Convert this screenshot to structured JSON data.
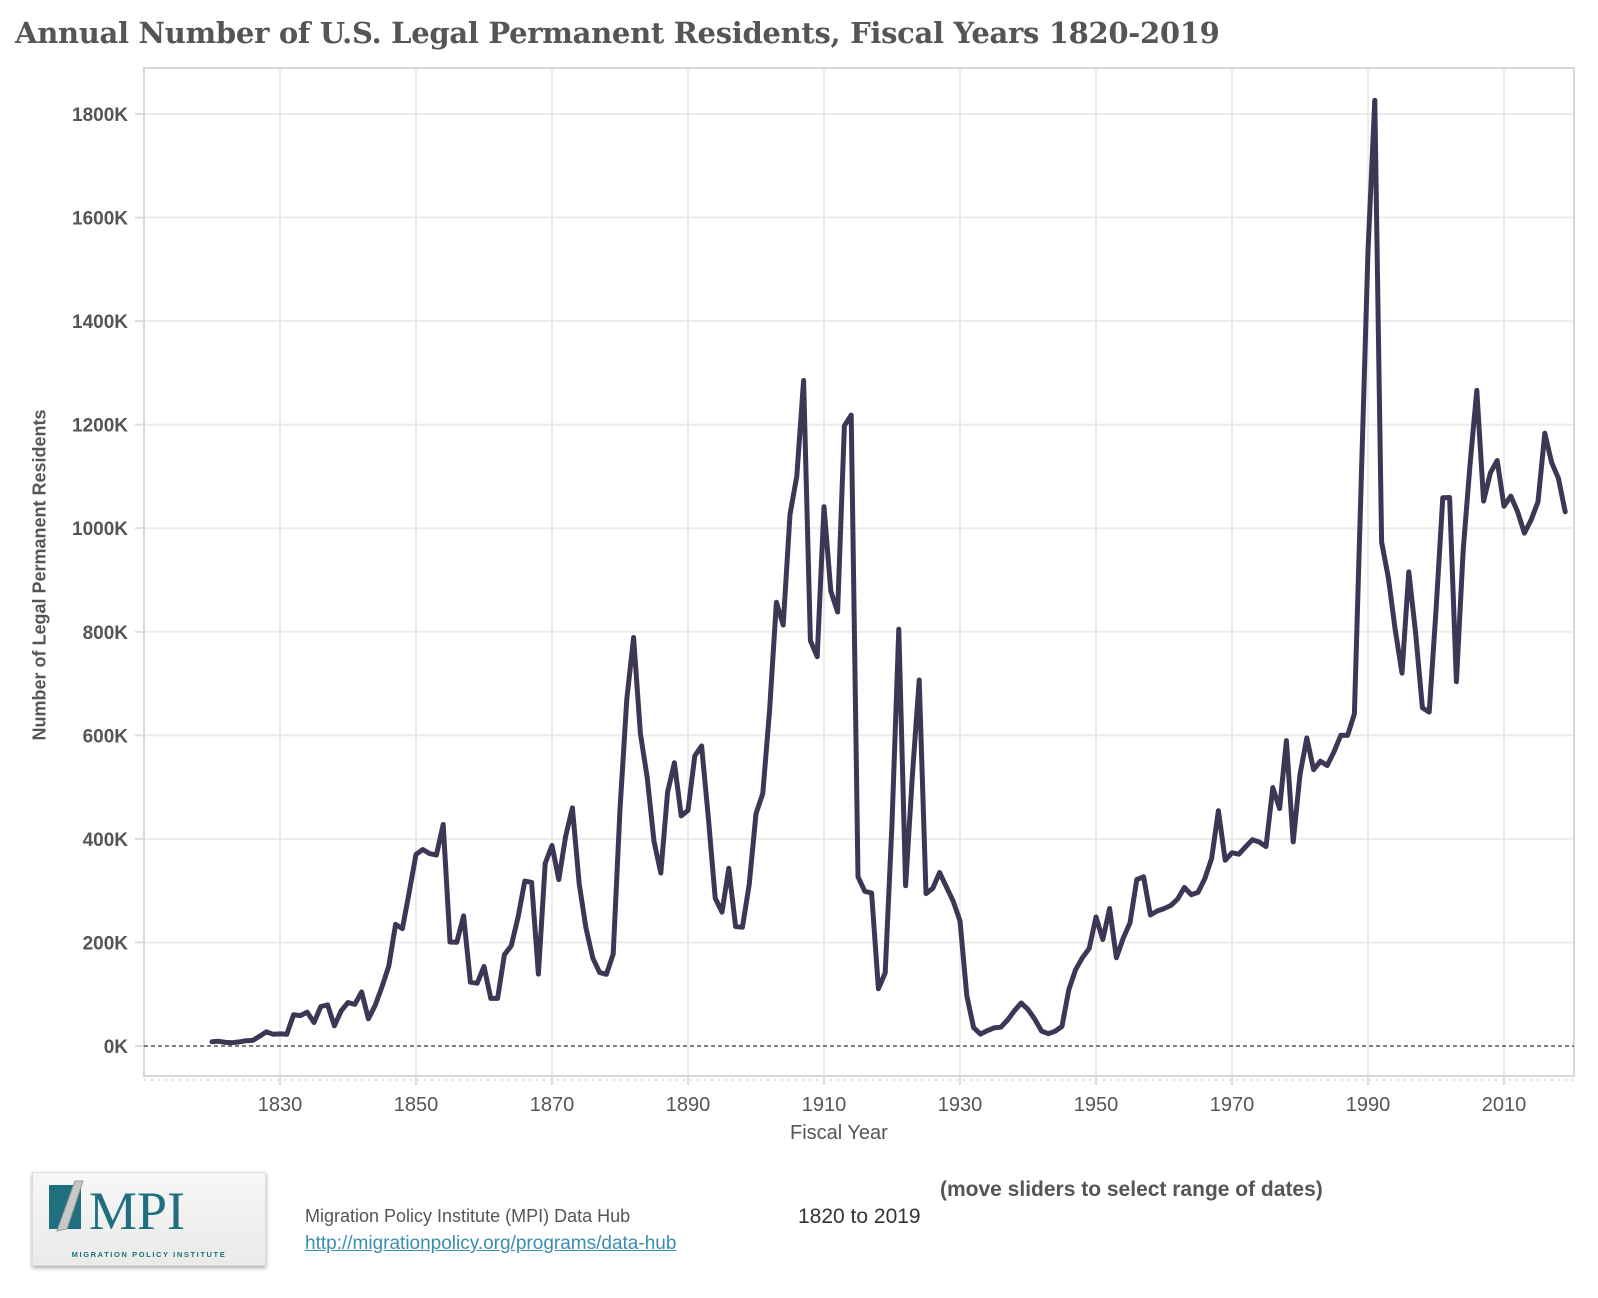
{
  "title": "Annual Number of U.S. Legal Permanent Residents, Fiscal Years 1820-2019",
  "footer": {
    "source": "Migration Policy Institute (MPI) Data Hub",
    "link": "http://migrationpolicy.org/programs/data-hub",
    "logo_text": "MPI",
    "logo_subtext": "MIGRATION POLICY INSTITUTE",
    "range_label": "1820 to 2019",
    "slider_hint": "(move sliders to select range of dates)"
  },
  "colors": {
    "line": "#3f3655",
    "text": "#555555",
    "link": "#3a8db0",
    "logo": "#1f6f7f"
  },
  "chart_data": {
    "type": "line",
    "title": "Annual Number of U.S. Legal Permanent Residents, Fiscal Years 1820-2019",
    "xlabel": "Fiscal Year",
    "ylabel": "Number of Legal Permanent Residents",
    "xlim": [
      1810,
      2020
    ],
    "ylim": [
      -60000,
      1890000
    ],
    "grid": true,
    "x_ticks": [
      1830,
      1850,
      1870,
      1890,
      1910,
      1930,
      1950,
      1970,
      1990,
      2010
    ],
    "y_ticks": [
      0,
      200000,
      400000,
      600000,
      800000,
      1000000,
      1200000,
      1400000,
      1600000,
      1800000
    ],
    "y_tick_labels": [
      "0K",
      "200K",
      "400K",
      "600K",
      "800K",
      "1000K",
      "1200K",
      "1400K",
      "1600K",
      "1800K"
    ],
    "x_start": 1820,
    "values": [
      8385,
      9127,
      6911,
      6354,
      7912,
      10199,
      10837,
      18875,
      27382,
      22520,
      23322,
      22633,
      60482,
      58640,
      65365,
      45374,
      76242,
      79340,
      38914,
      68069,
      84066,
      80289,
      104565,
      52496,
      78615,
      114371,
      154416,
      234968,
      226527,
      297024,
      369980,
      379466,
      371603,
      368645,
      427833,
      200877,
      200436,
      251306,
      123126,
      121282,
      153640,
      91918,
      91985,
      176282,
      193418,
      248120,
      318568,
      315722,
      138840,
      352768,
      387203,
      321350,
      404806,
      459803,
      313339,
      227498,
      169986,
      141857,
      138469,
      177826,
      457257,
      669431,
      788992,
      603322,
      518592,
      395346,
      334203,
      490109,
      546889,
      444427,
      455302,
      560319,
      579663,
      439730,
      285631,
      258536,
      343267,
      230832,
      229299,
      311715,
      448572,
      487918,
      648743,
      857046,
      812870,
      1026499,
      1100735,
      1285349,
      782870,
      751786,
      1041570,
      878587,
      838172,
      1197892,
      1218480,
      326700,
      298826,
      295403,
      110618,
      141132,
      430001,
      805228,
      309556,
      522919,
      706896,
      294314,
      304488,
      335175,
      307255,
      279678,
      241700,
      97139,
      35576,
      23068,
      29470,
      34956,
      36329,
      50244,
      67895,
      82998,
      70756,
      51776,
      28781,
      23725,
      28551,
      38119,
      108721,
      147292,
      170570,
      188317,
      249187,
      205717,
      265520,
      170434,
      208177,
      237790,
      321625,
      326867,
      253265,
      260686,
      265398,
      271344,
      283763,
      306260,
      292248,
      296697,
      323040,
      361972,
      454448,
      358579,
      373326,
      370478,
      384685,
      398515,
      393919,
      385378,
      499093,
      458755,
      589810,
      394244,
      524295,
      595014,
      533624,
      550052,
      541811,
      568149,
      600027,
      599889,
      641346,
      1088978,
      1535872,
      1826595,
      973445,
      903916,
      803993,
      720177,
      915560,
      797847,
      653206,
      644787,
      841002,
      1058902,
      1059356,
      703542,
      957883,
      1122257,
      1266129,
      1052415,
      1107126,
      1130818,
      1042625,
      1062040,
      1031631,
      990553,
      1016518,
      1051031,
      1183505,
      1127167,
      1096611,
      1031765
    ]
  }
}
